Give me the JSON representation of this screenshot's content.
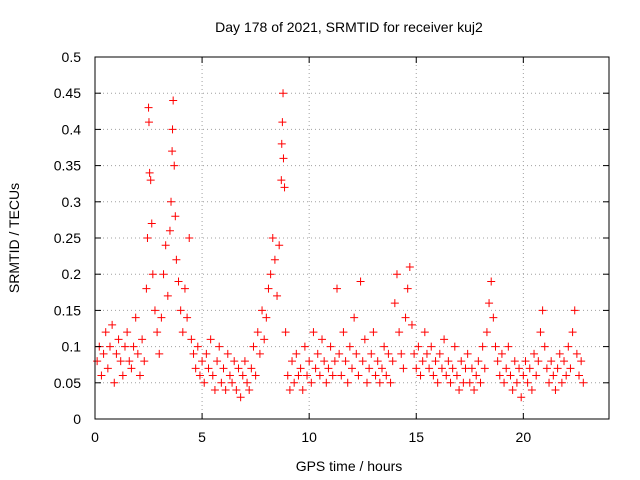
{
  "chart_data": {
    "type": "scatter",
    "title": "Day 178 of 2021, SRMTID for receiver kuj2",
    "xlabel": "GPS time / hours",
    "ylabel": "SRMTID / TECUs",
    "xlim": [
      0,
      24
    ],
    "ylim": [
      0,
      0.5
    ],
    "xticks": [
      0,
      5,
      10,
      15,
      20
    ],
    "xtick_labels": [
      "0",
      "5",
      "10",
      "15",
      "20"
    ],
    "yticks": [
      0,
      0.05,
      0.1,
      0.15,
      0.2,
      0.25,
      0.3,
      0.35,
      0.4,
      0.45,
      0.5
    ],
    "ytick_labels": [
      "0",
      "0.05",
      "0.1",
      "0.15",
      "0.2",
      "0.25",
      "0.3",
      "0.35",
      "0.4",
      "0.45",
      "0.5"
    ],
    "grid": true,
    "marker": "+",
    "color": "#ff0000",
    "series": [
      {
        "name": "SRMTID",
        "points": [
          [
            0.1,
            0.08
          ],
          [
            0.2,
            0.1
          ],
          [
            0.3,
            0.06
          ],
          [
            0.4,
            0.09
          ],
          [
            0.5,
            0.12
          ],
          [
            0.6,
            0.07
          ],
          [
            0.7,
            0.1
          ],
          [
            0.8,
            0.13
          ],
          [
            0.9,
            0.05
          ],
          [
            1.0,
            0.09
          ],
          [
            1.1,
            0.11
          ],
          [
            1.2,
            0.08
          ],
          [
            1.3,
            0.06
          ],
          [
            1.4,
            0.1
          ],
          [
            1.5,
            0.12
          ],
          [
            1.6,
            0.08
          ],
          [
            1.7,
            0.07
          ],
          [
            1.8,
            0.1
          ],
          [
            1.9,
            0.14
          ],
          [
            2.0,
            0.09
          ],
          [
            2.1,
            0.06
          ],
          [
            2.2,
            0.11
          ],
          [
            2.3,
            0.08
          ],
          [
            2.4,
            0.18
          ],
          [
            2.45,
            0.25
          ],
          [
            2.5,
            0.43
          ],
          [
            2.52,
            0.41
          ],
          [
            2.55,
            0.34
          ],
          [
            2.6,
            0.33
          ],
          [
            2.65,
            0.27
          ],
          [
            2.7,
            0.2
          ],
          [
            2.8,
            0.15
          ],
          [
            2.9,
            0.12
          ],
          [
            3.0,
            0.09
          ],
          [
            3.1,
            0.14
          ],
          [
            3.2,
            0.2
          ],
          [
            3.3,
            0.24
          ],
          [
            3.4,
            0.17
          ],
          [
            3.5,
            0.26
          ],
          [
            3.55,
            0.3
          ],
          [
            3.6,
            0.37
          ],
          [
            3.62,
            0.4
          ],
          [
            3.65,
            0.44
          ],
          [
            3.7,
            0.35
          ],
          [
            3.75,
            0.28
          ],
          [
            3.8,
            0.22
          ],
          [
            3.9,
            0.19
          ],
          [
            4.0,
            0.15
          ],
          [
            4.1,
            0.12
          ],
          [
            4.2,
            0.18
          ],
          [
            4.3,
            0.14
          ],
          [
            4.4,
            0.25
          ],
          [
            4.5,
            0.11
          ],
          [
            4.6,
            0.09
          ],
          [
            4.7,
            0.07
          ],
          [
            4.8,
            0.1
          ],
          [
            4.9,
            0.06
          ],
          [
            5.0,
            0.08
          ],
          [
            5.1,
            0.05
          ],
          [
            5.2,
            0.09
          ],
          [
            5.3,
            0.07
          ],
          [
            5.4,
            0.11
          ],
          [
            5.5,
            0.06
          ],
          [
            5.6,
            0.04
          ],
          [
            5.7,
            0.08
          ],
          [
            5.8,
            0.1
          ],
          [
            5.9,
            0.05
          ],
          [
            6.0,
            0.07
          ],
          [
            6.1,
            0.04
          ],
          [
            6.2,
            0.09
          ],
          [
            6.3,
            0.06
          ],
          [
            6.4,
            0.05
          ],
          [
            6.5,
            0.08
          ],
          [
            6.6,
            0.04
          ],
          [
            6.7,
            0.07
          ],
          [
            6.8,
            0.03
          ],
          [
            6.9,
            0.06
          ],
          [
            7.0,
            0.08
          ],
          [
            7.1,
            0.05
          ],
          [
            7.2,
            0.04
          ],
          [
            7.3,
            0.07
          ],
          [
            7.4,
            0.1
          ],
          [
            7.5,
            0.06
          ],
          [
            7.6,
            0.12
          ],
          [
            7.7,
            0.09
          ],
          [
            7.8,
            0.15
          ],
          [
            7.9,
            0.11
          ],
          [
            8.0,
            0.14
          ],
          [
            8.1,
            0.18
          ],
          [
            8.2,
            0.2
          ],
          [
            8.3,
            0.25
          ],
          [
            8.4,
            0.22
          ],
          [
            8.5,
            0.17
          ],
          [
            8.6,
            0.24
          ],
          [
            8.7,
            0.33
          ],
          [
            8.72,
            0.38
          ],
          [
            8.75,
            0.41
          ],
          [
            8.78,
            0.45
          ],
          [
            8.8,
            0.36
          ],
          [
            8.85,
            0.32
          ],
          [
            8.9,
            0.12
          ],
          [
            9.0,
            0.06
          ],
          [
            9.1,
            0.04
          ],
          [
            9.2,
            0.08
          ],
          [
            9.3,
            0.05
          ],
          [
            9.4,
            0.09
          ],
          [
            9.5,
            0.06
          ],
          [
            9.6,
            0.07
          ],
          [
            9.7,
            0.04
          ],
          [
            9.8,
            0.1
          ],
          [
            9.9,
            0.06
          ],
          [
            10.0,
            0.08
          ],
          [
            10.1,
            0.05
          ],
          [
            10.2,
            0.12
          ],
          [
            10.3,
            0.07
          ],
          [
            10.4,
            0.09
          ],
          [
            10.5,
            0.06
          ],
          [
            10.6,
            0.11
          ],
          [
            10.7,
            0.08
          ],
          [
            10.8,
            0.05
          ],
          [
            10.9,
            0.07
          ],
          [
            11.0,
            0.1
          ],
          [
            11.1,
            0.06
          ],
          [
            11.2,
            0.08
          ],
          [
            11.3,
            0.18
          ],
          [
            11.4,
            0.09
          ],
          [
            11.5,
            0.06
          ],
          [
            11.6,
            0.12
          ],
          [
            11.7,
            0.08
          ],
          [
            11.8,
            0.05
          ],
          [
            11.9,
            0.1
          ],
          [
            12.0,
            0.07
          ],
          [
            12.1,
            0.14
          ],
          [
            12.2,
            0.09
          ],
          [
            12.3,
            0.06
          ],
          [
            12.4,
            0.19
          ],
          [
            12.5,
            0.08
          ],
          [
            12.6,
            0.11
          ],
          [
            12.7,
            0.05
          ],
          [
            12.8,
            0.07
          ],
          [
            12.9,
            0.09
          ],
          [
            13.0,
            0.12
          ],
          [
            13.1,
            0.06
          ],
          [
            13.2,
            0.08
          ],
          [
            13.3,
            0.05
          ],
          [
            13.4,
            0.07
          ],
          [
            13.5,
            0.1
          ],
          [
            13.6,
            0.06
          ],
          [
            13.7,
            0.09
          ],
          [
            13.8,
            0.05
          ],
          [
            13.9,
            0.08
          ],
          [
            14.0,
            0.16
          ],
          [
            14.1,
            0.2
          ],
          [
            14.2,
            0.12
          ],
          [
            14.3,
            0.09
          ],
          [
            14.4,
            0.07
          ],
          [
            14.5,
            0.14
          ],
          [
            14.6,
            0.18
          ],
          [
            14.7,
            0.21
          ],
          [
            14.8,
            0.13
          ],
          [
            14.9,
            0.09
          ],
          [
            15.0,
            0.07
          ],
          [
            15.1,
            0.1
          ],
          [
            15.2,
            0.06
          ],
          [
            15.3,
            0.08
          ],
          [
            15.4,
            0.12
          ],
          [
            15.5,
            0.09
          ],
          [
            15.6,
            0.07
          ],
          [
            15.7,
            0.1
          ],
          [
            15.8,
            0.06
          ],
          [
            15.9,
            0.08
          ],
          [
            16.0,
            0.05
          ],
          [
            16.1,
            0.09
          ],
          [
            16.2,
            0.07
          ],
          [
            16.3,
            0.11
          ],
          [
            16.4,
            0.06
          ],
          [
            16.5,
            0.08
          ],
          [
            16.6,
            0.05
          ],
          [
            16.7,
            0.07
          ],
          [
            16.8,
            0.1
          ],
          [
            16.9,
            0.06
          ],
          [
            17.0,
            0.04
          ],
          [
            17.1,
            0.08
          ],
          [
            17.2,
            0.05
          ],
          [
            17.3,
            0.07
          ],
          [
            17.4,
            0.09
          ],
          [
            17.5,
            0.05
          ],
          [
            17.6,
            0.07
          ],
          [
            17.7,
            0.04
          ],
          [
            17.8,
            0.06
          ],
          [
            17.9,
            0.08
          ],
          [
            18.0,
            0.05
          ],
          [
            18.1,
            0.1
          ],
          [
            18.2,
            0.07
          ],
          [
            18.3,
            0.12
          ],
          [
            18.4,
            0.16
          ],
          [
            18.5,
            0.19
          ],
          [
            18.6,
            0.14
          ],
          [
            18.7,
            0.1
          ],
          [
            18.8,
            0.08
          ],
          [
            18.9,
            0.06
          ],
          [
            19.0,
            0.09
          ],
          [
            19.1,
            0.05
          ],
          [
            19.2,
            0.07
          ],
          [
            19.3,
            0.1
          ],
          [
            19.4,
            0.06
          ],
          [
            19.5,
            0.04
          ],
          [
            19.6,
            0.08
          ],
          [
            19.7,
            0.05
          ],
          [
            19.8,
            0.07
          ],
          [
            19.9,
            0.03
          ],
          [
            20.0,
            0.06
          ],
          [
            20.1,
            0.08
          ],
          [
            20.2,
            0.05
          ],
          [
            20.3,
            0.07
          ],
          [
            20.4,
            0.04
          ],
          [
            20.5,
            0.09
          ],
          [
            20.6,
            0.06
          ],
          [
            20.7,
            0.08
          ],
          [
            20.8,
            0.12
          ],
          [
            20.9,
            0.15
          ],
          [
            21.0,
            0.1
          ],
          [
            21.1,
            0.07
          ],
          [
            21.2,
            0.05
          ],
          [
            21.3,
            0.08
          ],
          [
            21.4,
            0.06
          ],
          [
            21.5,
            0.04
          ],
          [
            21.6,
            0.07
          ],
          [
            21.7,
            0.09
          ],
          [
            21.8,
            0.05
          ],
          [
            21.9,
            0.08
          ],
          [
            22.0,
            0.06
          ],
          [
            22.1,
            0.1
          ],
          [
            22.2,
            0.07
          ],
          [
            22.3,
            0.12
          ],
          [
            22.4,
            0.15
          ],
          [
            22.5,
            0.09
          ],
          [
            22.6,
            0.06
          ],
          [
            22.7,
            0.08
          ],
          [
            22.8,
            0.05
          ]
        ]
      }
    ]
  }
}
